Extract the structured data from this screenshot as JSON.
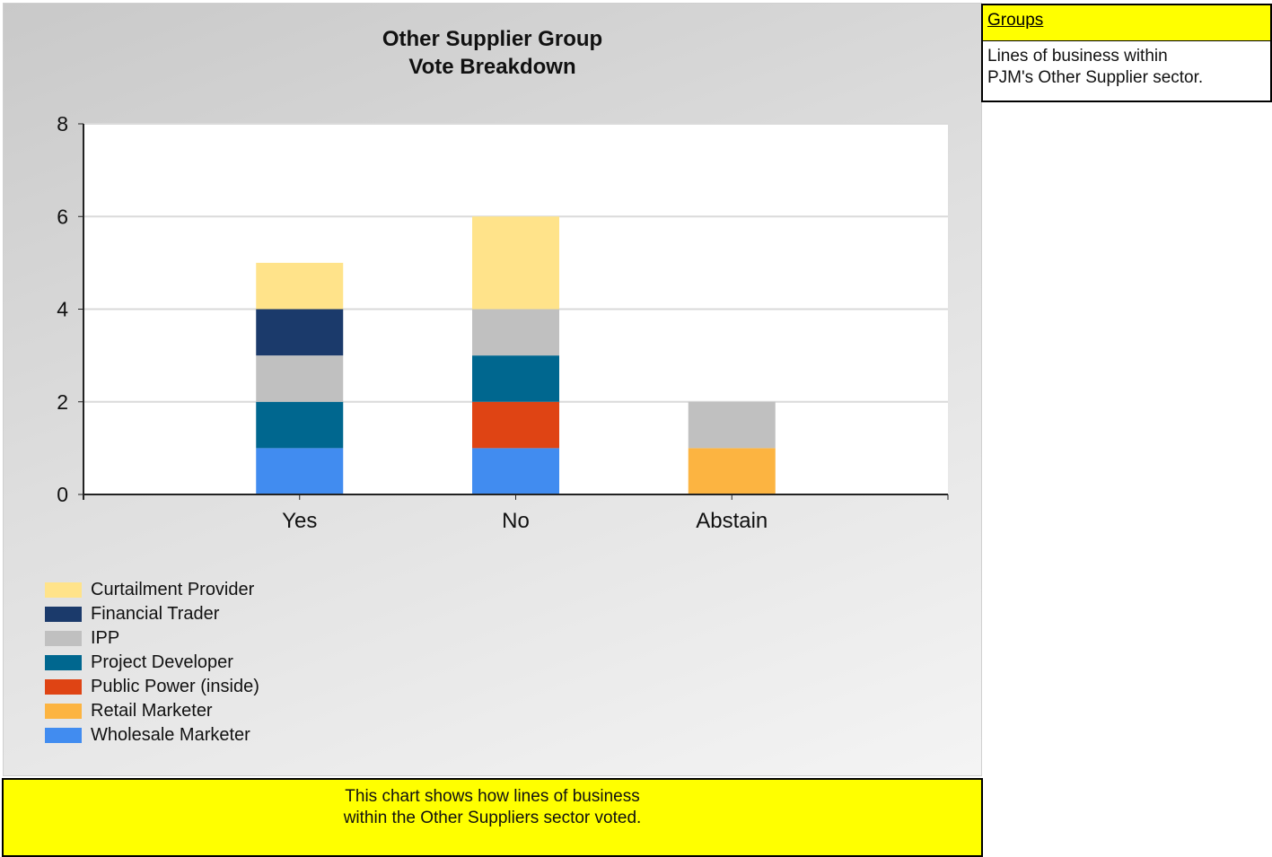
{
  "chart_data": {
    "type": "bar",
    "stacked": true,
    "title": [
      "Other Supplier Group",
      "Vote Breakdown"
    ],
    "categories": [
      "Yes",
      "No",
      "Abstain"
    ],
    "ylim": [
      0,
      8
    ],
    "yticks": [
      0,
      2,
      4,
      6,
      8
    ],
    "grid": true,
    "legend_position": "bottom-left",
    "series": [
      {
        "name": "Curtailment Provider",
        "color": "#FFE38A",
        "values": [
          1,
          2,
          0
        ]
      },
      {
        "name": "Financial Trader",
        "color": "#1B3A6B",
        "values": [
          1,
          0,
          0
        ]
      },
      {
        "name": "IPP",
        "color": "#C0C0C0",
        "values": [
          1,
          1,
          1
        ]
      },
      {
        "name": "Project Developer",
        "color": "#00678F",
        "values": [
          1,
          1,
          0
        ]
      },
      {
        "name": "Public Power (inside)",
        "color": "#DF4414",
        "values": [
          0,
          1,
          0
        ]
      },
      {
        "name": "Retail Marketer",
        "color": "#FCB441",
        "values": [
          0,
          0,
          1
        ]
      },
      {
        "name": "Wholesale Marketer",
        "color": "#418CF0",
        "values": [
          1,
          1,
          0
        ]
      }
    ]
  },
  "footer": {
    "line1": "This chart shows how lines of business",
    "line2": "within the Other Suppliers sector voted."
  },
  "groups": {
    "header": "Groups",
    "line1": "Lines of business within",
    "line2": "PJM's Other Supplier sector."
  }
}
